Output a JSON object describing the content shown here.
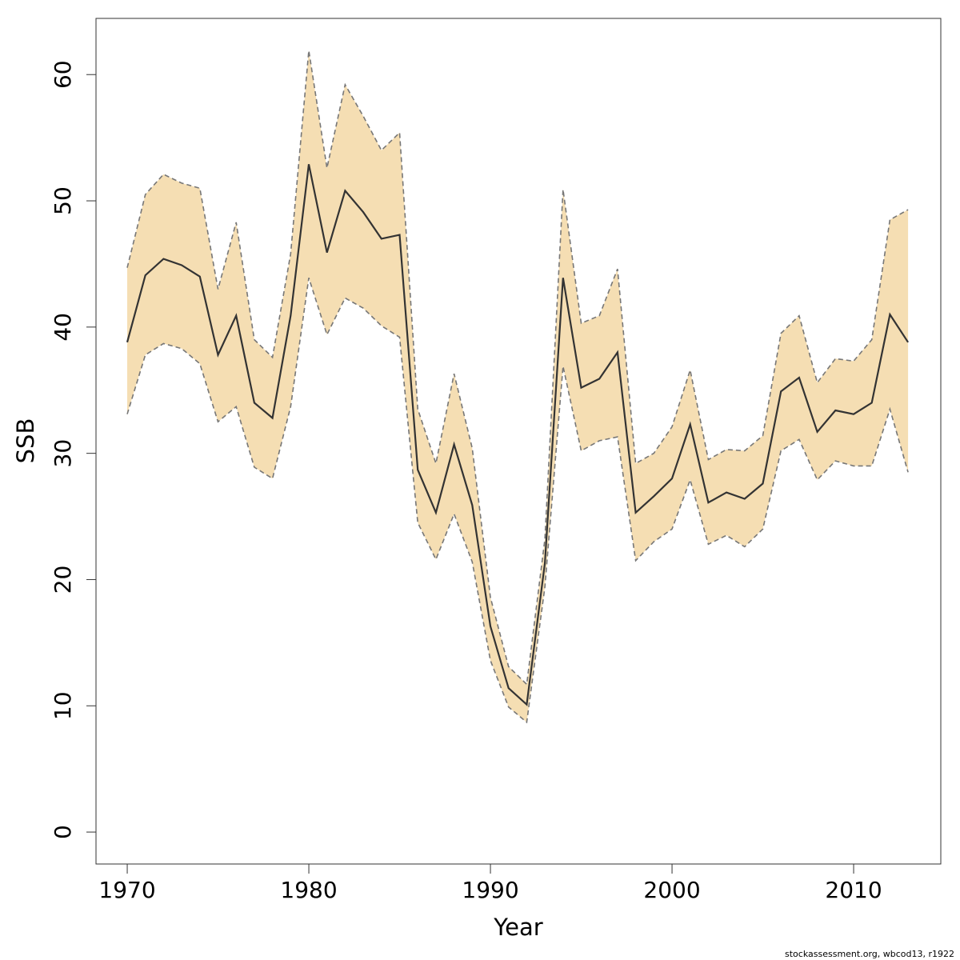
{
  "chart_data": {
    "type": "line",
    "xlabel": "Year",
    "ylabel": "SSB",
    "footnote": "stockassessment.org, wbcod13, r1922",
    "x": [
      1970,
      1971,
      1972,
      1973,
      1974,
      1975,
      1976,
      1977,
      1978,
      1979,
      1980,
      1981,
      1982,
      1983,
      1984,
      1985,
      1986,
      1987,
      1988,
      1989,
      1990,
      1991,
      1992,
      1993,
      1994,
      1995,
      1996,
      1997,
      1998,
      1999,
      2000,
      2001,
      2002,
      2003,
      2004,
      2005,
      2006,
      2007,
      2008,
      2009,
      2010,
      2011,
      2012,
      2013
    ],
    "values": [
      38.8,
      44.1,
      45.4,
      44.9,
      44.0,
      37.8,
      40.9,
      34.0,
      32.8,
      40.9,
      52.9,
      45.9,
      50.8,
      49.1,
      47.0,
      47.3,
      28.7,
      25.3,
      30.7,
      25.9,
      16.3,
      11.4,
      10.1,
      21.3,
      43.9,
      35.2,
      35.9,
      38.0,
      25.3,
      26.6,
      28.0,
      32.3,
      26.1,
      26.9,
      26.4,
      27.6,
      34.9,
      36.0,
      31.7,
      33.4,
      33.1,
      34.0,
      41.0,
      38.8
    ],
    "upper": [
      44.7,
      50.5,
      52.1,
      51.4,
      51.0,
      43.0,
      48.3,
      39.0,
      37.6,
      45.8,
      61.9,
      52.6,
      59.2,
      56.7,
      54.0,
      55.4,
      33.5,
      29.2,
      36.3,
      30.4,
      18.6,
      13.1,
      11.7,
      23.2,
      50.9,
      40.3,
      40.9,
      44.6,
      29.2,
      30.0,
      32.1,
      36.6,
      29.5,
      30.3,
      30.2,
      31.4,
      39.5,
      40.9,
      35.6,
      37.5,
      37.3,
      39.0,
      48.5,
      49.3
    ],
    "lower": [
      33.1,
      37.8,
      38.7,
      38.3,
      37.1,
      32.5,
      33.7,
      28.9,
      28.0,
      33.7,
      43.9,
      39.4,
      42.3,
      41.5,
      40.1,
      39.2,
      24.5,
      21.6,
      25.2,
      21.4,
      13.6,
      9.9,
      8.7,
      19.4,
      36.9,
      30.2,
      31.0,
      31.3,
      21.5,
      23.0,
      24.0,
      27.9,
      22.8,
      23.5,
      22.6,
      24.0,
      30.2,
      31.1,
      27.9,
      29.4,
      29.0,
      29.0,
      33.5,
      28.5
    ],
    "color": "#333333",
    "band_color": "#f5deb3",
    "band_edge_color": "#777777",
    "xlim": [
      1968.28,
      2014.8
    ],
    "xticks": [
      1970,
      1980,
      1990,
      2000,
      2010
    ],
    "ylim": [
      -2.53,
      64.45
    ],
    "yticks": [
      0,
      10,
      20,
      30,
      40,
      50,
      60
    ]
  }
}
